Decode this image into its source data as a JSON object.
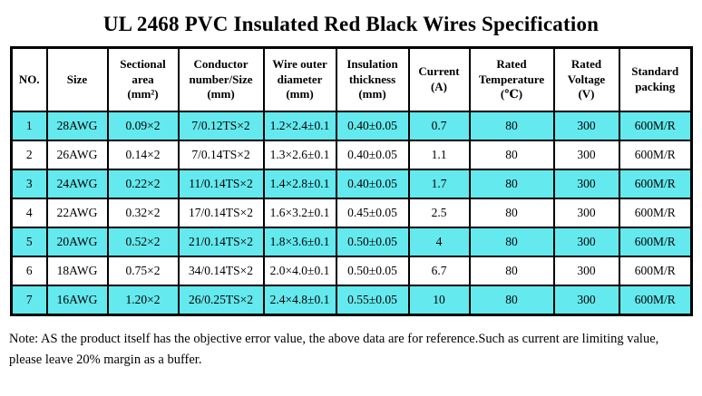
{
  "title": "UL 2468 PVC Insulated Red Black Wires Specification",
  "colors": {
    "row_highlight": "#63e9ee",
    "table_border": "#000000",
    "background": "#ffffff",
    "text": "#000000"
  },
  "table": {
    "headers": [
      "NO.",
      "Size",
      "Sectional\narea\n(mm²)",
      "Conductor\nnumber/Size\n(mm)",
      "Wire outer\ndiameter\n(mm)",
      "Insulation\nthickness\n(mm)",
      "Current\n(A)",
      "Rated\nTemperature\n(℃)",
      "Rated\nVoltage\n(V)",
      "Standard\npacking"
    ],
    "rows": [
      [
        "1",
        "28AWG",
        "0.09×2",
        "7/0.12TS×2",
        "1.2×2.4±0.1",
        "0.40±0.05",
        "0.7",
        "80",
        "300",
        "600M/R"
      ],
      [
        "2",
        "26AWG",
        "0.14×2",
        "7/0.14TS×2",
        "1.3×2.6±0.1",
        "0.40±0.05",
        "1.1",
        "80",
        "300",
        "600M/R"
      ],
      [
        "3",
        "24AWG",
        "0.22×2",
        "11/0.14TS×2",
        "1.4×2.8±0.1",
        "0.40±0.05",
        "1.7",
        "80",
        "300",
        "600M/R"
      ],
      [
        "4",
        "22AWG",
        "0.32×2",
        "17/0.14TS×2",
        "1.6×3.2±0.1",
        "0.45±0.05",
        "2.5",
        "80",
        "300",
        "600M/R"
      ],
      [
        "5",
        "20AWG",
        "0.52×2",
        "21/0.14TS×2",
        "1.8×3.6±0.1",
        "0.50±0.05",
        "4",
        "80",
        "300",
        "600M/R"
      ],
      [
        "6",
        "18AWG",
        "0.75×2",
        "34/0.14TS×2",
        "2.0×4.0±0.1",
        "0.50±0.05",
        "6.7",
        "80",
        "300",
        "600M/R"
      ],
      [
        "7",
        "16AWG",
        "1.20×2",
        "26/0.25TS×2",
        "2.4×4.8±0.1",
        "0.55±0.05",
        "10",
        "80",
        "300",
        "600M/R"
      ]
    ]
  },
  "note": "Note:  AS the product itself has the objective error value, the above data are for reference.Such as current are limiting value,\nplease leave 20% margin as a buffer."
}
